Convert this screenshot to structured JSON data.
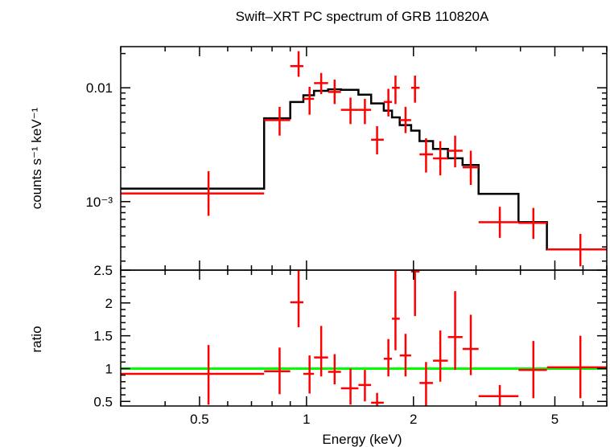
{
  "chart_data": {
    "type": "line",
    "title": "Swift–XRT PC spectrum of GRB 110820A",
    "xlabel": "Energy (keV)",
    "xscale": "log",
    "xlim": [
      0.3,
      7.0
    ],
    "x_ticks": [
      {
        "value": 0.5,
        "label": "0.5"
      },
      {
        "value": 1,
        "label": "1"
      },
      {
        "value": 2,
        "label": "2"
      },
      {
        "value": 5,
        "label": "5"
      }
    ],
    "panels": [
      {
        "name": "spectrum",
        "ylabel": "counts s⁻¹ keV⁻¹",
        "yscale": "log",
        "ylim": [
          0.00025,
          0.023
        ],
        "y_ticks": [
          {
            "value": 0.01,
            "label": "0.01"
          },
          {
            "value": 0.001,
            "label": "10⁻³"
          }
        ],
        "data_points": [
          {
            "xlo": 0.3,
            "xhi": 0.76,
            "x": 0.53,
            "y": 0.00118,
            "ylo": 0.00075,
            "yhi": 0.00185
          },
          {
            "xlo": 0.76,
            "xhi": 0.9,
            "x": 0.84,
            "y": 0.0052,
            "ylo": 0.0038,
            "yhi": 0.0068
          },
          {
            "xlo": 0.9,
            "xhi": 0.98,
            "x": 0.95,
            "y": 0.0155,
            "ylo": 0.0125,
            "yhi": 0.021
          },
          {
            "xlo": 0.98,
            "xhi": 1.05,
            "x": 1.02,
            "y": 0.008,
            "ylo": 0.0058,
            "yhi": 0.0102
          },
          {
            "xlo": 1.05,
            "xhi": 1.15,
            "x": 1.1,
            "y": 0.011,
            "ylo": 0.0088,
            "yhi": 0.0135
          },
          {
            "xlo": 1.15,
            "xhi": 1.25,
            "x": 1.2,
            "y": 0.0092,
            "ylo": 0.0072,
            "yhi": 0.0118
          },
          {
            "xlo": 1.25,
            "xhi": 1.4,
            "x": 1.33,
            "y": 0.0064,
            "ylo": 0.0048,
            "yhi": 0.0082
          },
          {
            "xlo": 1.4,
            "xhi": 1.52,
            "x": 1.46,
            "y": 0.0064,
            "ylo": 0.0048,
            "yhi": 0.008
          },
          {
            "xlo": 1.52,
            "xhi": 1.65,
            "x": 1.58,
            "y": 0.0035,
            "ylo": 0.0026,
            "yhi": 0.0046
          },
          {
            "xlo": 1.65,
            "xhi": 1.74,
            "x": 1.7,
            "y": 0.0075,
            "ylo": 0.0056,
            "yhi": 0.0098
          },
          {
            "xlo": 1.74,
            "xhi": 1.83,
            "x": 1.78,
            "y": 0.01,
            "ylo": 0.0072,
            "yhi": 0.0128
          },
          {
            "xlo": 1.83,
            "xhi": 1.97,
            "x": 1.9,
            "y": 0.0052,
            "ylo": 0.004,
            "yhi": 0.0068
          },
          {
            "xlo": 1.97,
            "xhi": 2.08,
            "x": 2.02,
            "y": 0.01,
            "ylo": 0.0074,
            "yhi": 0.0128
          },
          {
            "xlo": 2.08,
            "xhi": 2.27,
            "x": 2.17,
            "y": 0.0026,
            "ylo": 0.0018,
            "yhi": 0.0036
          },
          {
            "xlo": 2.27,
            "xhi": 2.5,
            "x": 2.38,
            "y": 0.0024,
            "ylo": 0.0017,
            "yhi": 0.0034
          },
          {
            "xlo": 2.5,
            "xhi": 2.75,
            "x": 2.62,
            "y": 0.0028,
            "ylo": 0.002,
            "yhi": 0.0038
          },
          {
            "xlo": 2.75,
            "xhi": 3.05,
            "x": 2.9,
            "y": 0.002,
            "ylo": 0.0014,
            "yhi": 0.0028
          },
          {
            "xlo": 3.05,
            "xhi": 3.95,
            "x": 3.5,
            "y": 0.00066,
            "ylo": 0.00048,
            "yhi": 0.0009
          },
          {
            "xlo": 3.95,
            "xhi": 4.75,
            "x": 4.35,
            "y": 0.00065,
            "ylo": 0.00047,
            "yhi": 0.00088
          },
          {
            "xlo": 4.75,
            "xhi": 7.0,
            "x": 5.9,
            "y": 0.00038,
            "ylo": 0.00027,
            "yhi": 0.00052
          }
        ],
        "model_steps": [
          {
            "xlo": 0.3,
            "xhi": 0.76,
            "y": 0.0013
          },
          {
            "xlo": 0.76,
            "xhi": 0.9,
            "y": 0.0054
          },
          {
            "xlo": 0.9,
            "xhi": 0.98,
            "y": 0.0075
          },
          {
            "xlo": 0.98,
            "xhi": 1.05,
            "y": 0.0086
          },
          {
            "xlo": 1.05,
            "xhi": 1.15,
            "y": 0.0094
          },
          {
            "xlo": 1.15,
            "xhi": 1.25,
            "y": 0.0097
          },
          {
            "xlo": 1.25,
            "xhi": 1.4,
            "y": 0.0096
          },
          {
            "xlo": 1.4,
            "xhi": 1.52,
            "y": 0.0087
          },
          {
            "xlo": 1.52,
            "xhi": 1.65,
            "y": 0.0073
          },
          {
            "xlo": 1.65,
            "xhi": 1.74,
            "y": 0.0063
          },
          {
            "xlo": 1.74,
            "xhi": 1.83,
            "y": 0.0055
          },
          {
            "xlo": 1.83,
            "xhi": 1.97,
            "y": 0.0047
          },
          {
            "xlo": 1.97,
            "xhi": 2.08,
            "y": 0.0042
          },
          {
            "xlo": 2.08,
            "xhi": 2.27,
            "y": 0.0034
          },
          {
            "xlo": 2.27,
            "xhi": 2.5,
            "y": 0.0029
          },
          {
            "xlo": 2.5,
            "xhi": 2.75,
            "y": 0.0024
          },
          {
            "xlo": 2.75,
            "xhi": 3.05,
            "y": 0.0021
          },
          {
            "xlo": 3.05,
            "xhi": 3.95,
            "y": 0.00117
          },
          {
            "xlo": 3.95,
            "xhi": 4.75,
            "y": 0.00066
          },
          {
            "xlo": 4.75,
            "xhi": 7.0,
            "y": 0.00038
          }
        ]
      },
      {
        "name": "ratio",
        "ylabel": "ratio",
        "yscale": "linear",
        "ylim": [
          0.43,
          2.5
        ],
        "y_ticks": [
          {
            "value": 0.5,
            "label": "0.5"
          },
          {
            "value": 1,
            "label": "1"
          },
          {
            "value": 1.5,
            "label": "1.5"
          },
          {
            "value": 2,
            "label": "2"
          },
          {
            "value": 2.5,
            "label": "2.5"
          }
        ],
        "reference_line": 1.0,
        "data_points": [
          {
            "xlo": 0.3,
            "xhi": 0.76,
            "x": 0.53,
            "y": 0.92,
            "ylo": 0.45,
            "yhi": 1.36
          },
          {
            "xlo": 0.76,
            "xhi": 0.9,
            "x": 0.84,
            "y": 0.96,
            "ylo": 0.61,
            "yhi": 1.32
          },
          {
            "xlo": 0.9,
            "xhi": 0.98,
            "x": 0.95,
            "y": 2.01,
            "ylo": 1.63,
            "yhi": 2.55
          },
          {
            "xlo": 0.98,
            "xhi": 1.05,
            "x": 1.02,
            "y": 0.92,
            "ylo": 0.62,
            "yhi": 1.2
          },
          {
            "xlo": 1.05,
            "xhi": 1.15,
            "x": 1.1,
            "y": 1.17,
            "ylo": 0.88,
            "yhi": 1.65
          },
          {
            "xlo": 1.15,
            "xhi": 1.25,
            "x": 1.2,
            "y": 0.95,
            "ylo": 0.76,
            "yhi": 1.22
          },
          {
            "xlo": 1.25,
            "xhi": 1.4,
            "x": 1.33,
            "y": 0.7,
            "ylo": 0.45,
            "yhi": 1.0
          },
          {
            "xlo": 1.4,
            "xhi": 1.52,
            "x": 1.46,
            "y": 0.75,
            "ylo": 0.5,
            "yhi": 0.98
          },
          {
            "xlo": 1.52,
            "xhi": 1.65,
            "x": 1.58,
            "y": 0.48,
            "ylo": 0.36,
            "yhi": 0.63
          },
          {
            "xlo": 1.65,
            "xhi": 1.74,
            "x": 1.7,
            "y": 1.15,
            "ylo": 0.88,
            "yhi": 1.45
          },
          {
            "xlo": 1.74,
            "xhi": 1.83,
            "x": 1.78,
            "y": 1.76,
            "ylo": 1.28,
            "yhi": 2.5
          },
          {
            "xlo": 1.83,
            "xhi": 1.97,
            "x": 1.9,
            "y": 1.2,
            "ylo": 0.88,
            "yhi": 1.53
          },
          {
            "xlo": 1.97,
            "xhi": 2.08,
            "x": 2.02,
            "y": 2.48,
            "ylo": 1.8,
            "yhi": 2.55
          },
          {
            "xlo": 2.08,
            "xhi": 2.27,
            "x": 2.17,
            "y": 0.78,
            "ylo": 0.43,
            "yhi": 1.1
          },
          {
            "xlo": 2.27,
            "xhi": 2.5,
            "x": 2.38,
            "y": 1.12,
            "ylo": 0.8,
            "yhi": 1.58
          },
          {
            "xlo": 2.5,
            "xhi": 2.75,
            "x": 2.62,
            "y": 1.48,
            "ylo": 0.98,
            "yhi": 2.18
          },
          {
            "xlo": 2.75,
            "xhi": 3.05,
            "x": 2.9,
            "y": 1.3,
            "ylo": 0.9,
            "yhi": 1.82
          },
          {
            "xlo": 3.05,
            "xhi": 3.95,
            "x": 3.5,
            "y": 0.58,
            "ylo": 0.43,
            "yhi": 0.75
          },
          {
            "xlo": 3.95,
            "xhi": 4.75,
            "x": 4.35,
            "y": 0.98,
            "ylo": 0.55,
            "yhi": 1.42
          },
          {
            "xlo": 4.75,
            "xhi": 7.0,
            "x": 5.9,
            "y": 1.02,
            "ylo": 0.55,
            "yhi": 1.5
          }
        ]
      }
    ],
    "colors": {
      "data": "#ff0000",
      "model": "#000000",
      "reference_line": "#00ff00",
      "axes": "#000000"
    }
  }
}
